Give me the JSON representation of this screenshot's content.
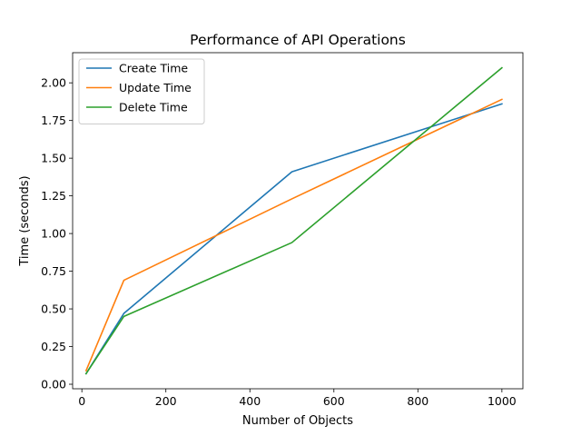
{
  "chart_data": {
    "type": "line",
    "title": "Performance of API Operations",
    "xlabel": "Number of Objects",
    "ylabel": "Time (seconds)",
    "xlim": [
      -22,
      1050
    ],
    "ylim": [
      -0.03,
      2.2
    ],
    "xticks": [
      0,
      200,
      400,
      600,
      800,
      1000
    ],
    "yticks": [
      0.0,
      0.25,
      0.5,
      0.75,
      1.0,
      1.25,
      1.5,
      1.75,
      2.0
    ],
    "ytick_labels": [
      "0.00",
      "0.25",
      "0.50",
      "0.75",
      "1.00",
      "1.25",
      "1.50",
      "1.75",
      "2.00"
    ],
    "grid": false,
    "legend_position": "top-left",
    "x": [
      10,
      100,
      500,
      1000
    ],
    "series": [
      {
        "name": "Create Time",
        "color": "#1f77b4",
        "values": [
          0.07,
          0.47,
          1.41,
          1.86
        ]
      },
      {
        "name": "Update Time",
        "color": "#ff7f0e",
        "values": [
          0.09,
          0.69,
          1.23,
          1.89
        ]
      },
      {
        "name": "Delete Time",
        "color": "#2ca02c",
        "values": [
          0.07,
          0.45,
          0.94,
          2.1
        ]
      }
    ]
  }
}
